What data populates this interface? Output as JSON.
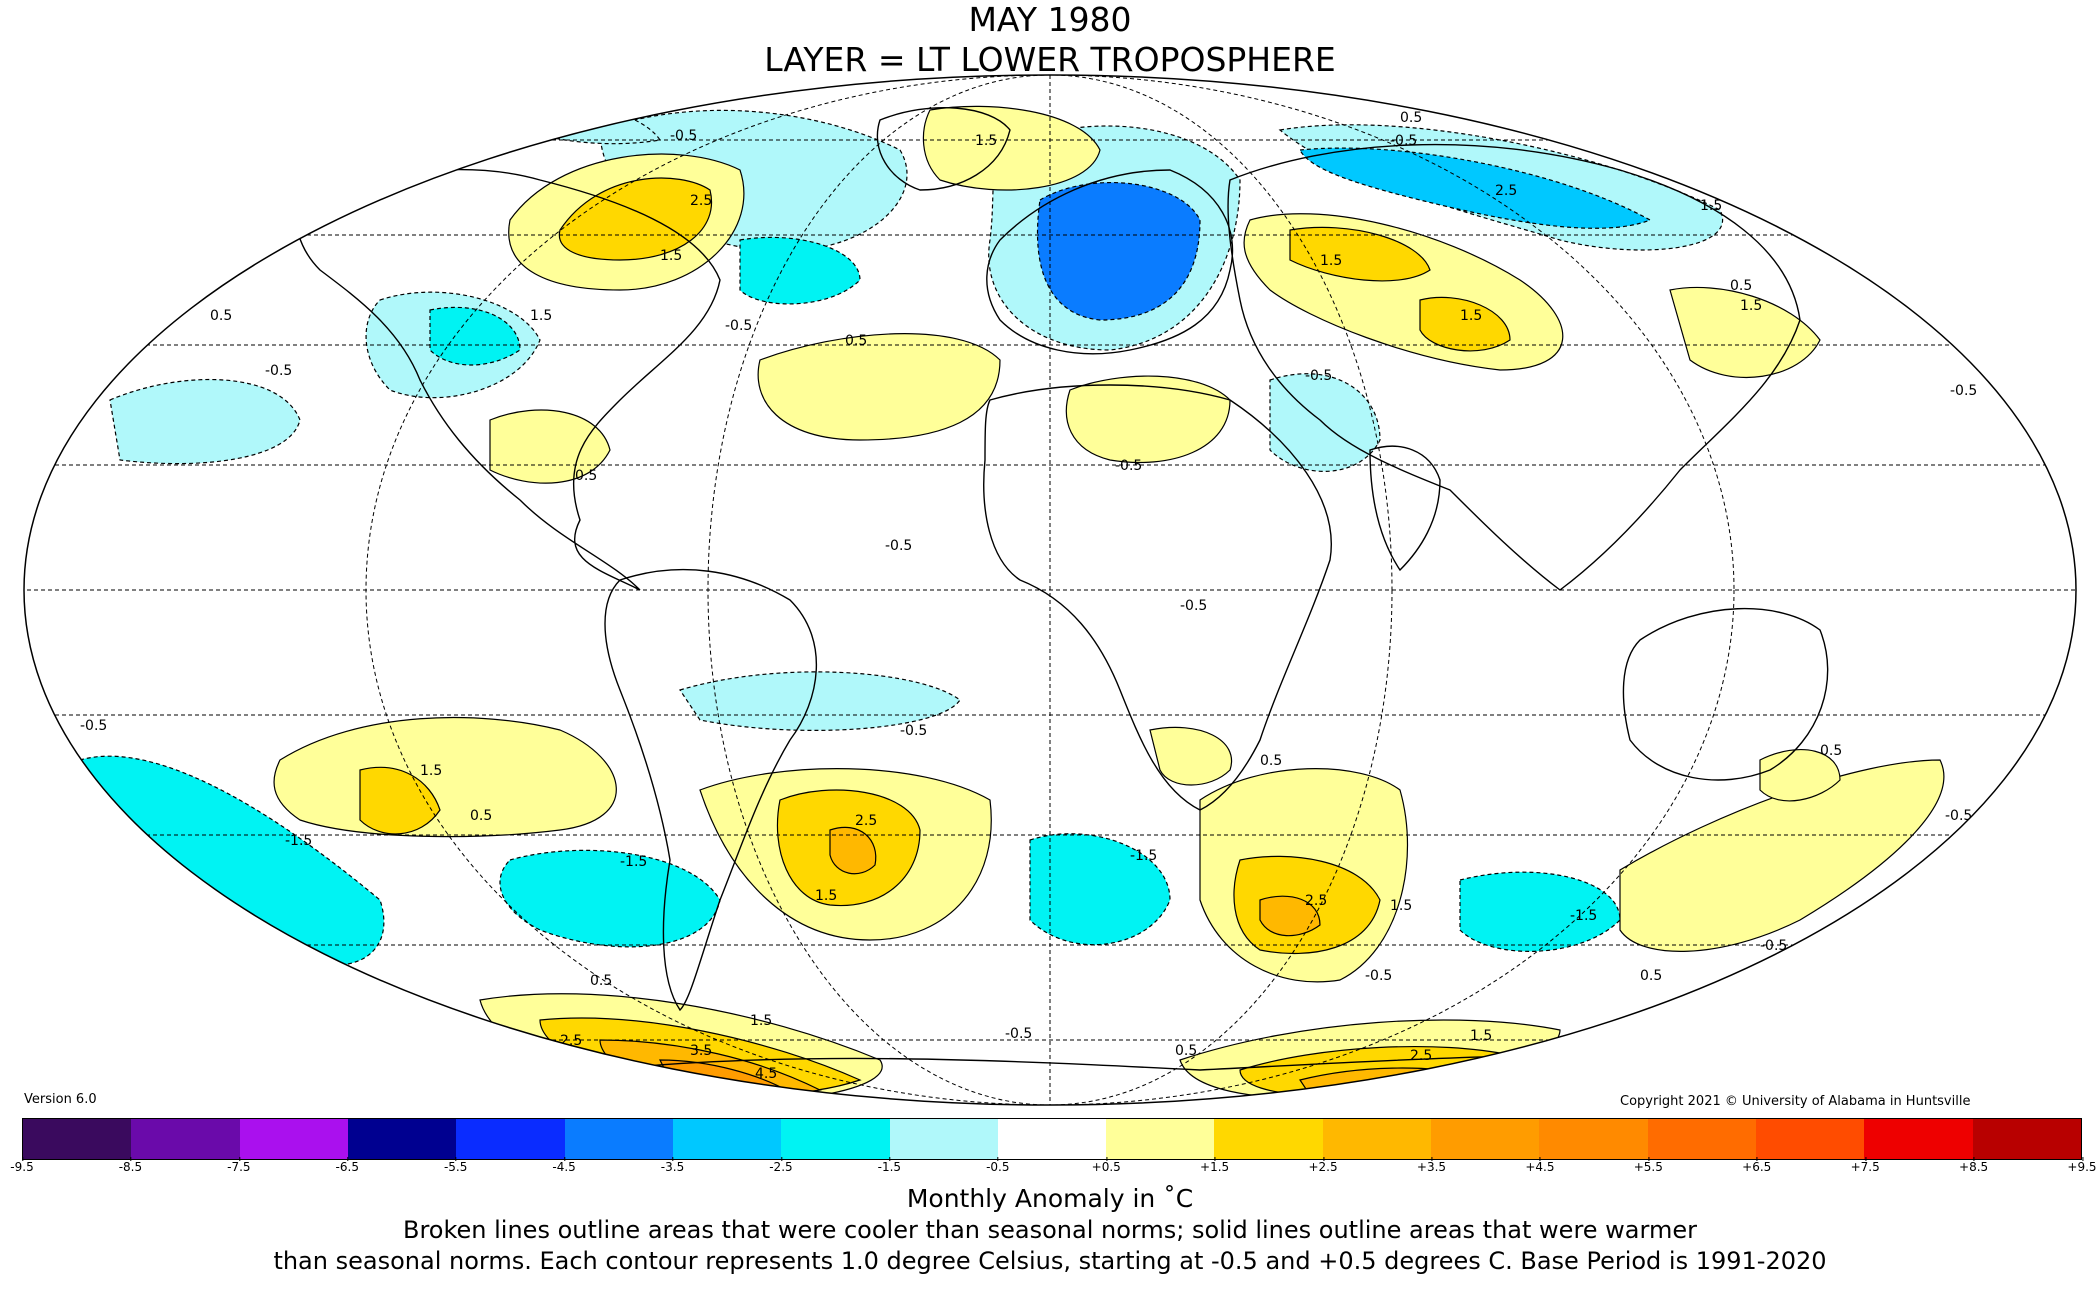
{
  "title_line1": "MAY 1980",
  "title_line2": "LAYER = LT LOWER TROPOSPHERE",
  "version": "Version 6.0",
  "copyright": "Copyright 2021 © University of Alabama in Huntsville",
  "colorbar": {
    "colors": [
      "#3a0a5e",
      "#6a0aaa",
      "#aa10ee",
      "#000090",
      "#0a2cff",
      "#0a7cff",
      "#00c8ff",
      "#00f3f3",
      "#b0f8fa",
      "#ffffff",
      "#ffff99",
      "#ffd800",
      "#ffb800",
      "#ff9c00",
      "#ff8a00",
      "#ff6c00",
      "#ff4c00",
      "#ee0000",
      "#b80000"
    ],
    "ticks": [
      "-9.5",
      "-8.5",
      "-7.5",
      "-6.5",
      "-5.5",
      "-4.5",
      "-3.5",
      "-2.5",
      "-1.5",
      "-0.5",
      "+0.5",
      "+1.5",
      "+2.5",
      "+3.5",
      "+4.5",
      "+5.5",
      "+6.5",
      "+7.5",
      "+8.5",
      "+9.5"
    ]
  },
  "unit_label": "Monthly Anomaly in ˚C",
  "note_line1": "Broken lines outline areas that were cooler than seasonal norms; solid lines outline areas that were warmer",
  "note_line2": "than seasonal norms. Each contour represents 1.0 degree Celsius, starting at -0.5 and +0.5 degrees C. Base Period is 1991-2020",
  "contour_labels": [
    "-0.5",
    "0.5",
    "1.5",
    "2.5",
    "3.5",
    "4.5",
    "-1.5",
    "-2.5"
  ]
}
